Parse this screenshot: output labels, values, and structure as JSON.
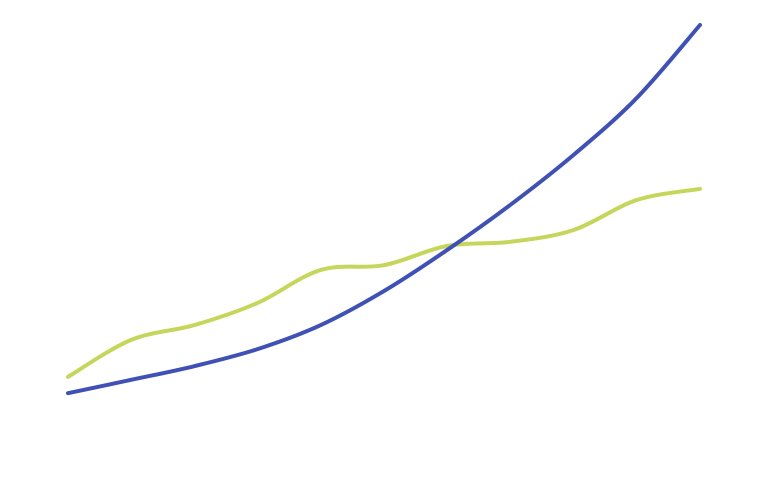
{
  "chart_data": {
    "type": "line",
    "x": [
      0,
      10,
      20,
      30,
      40,
      50,
      60,
      70,
      80,
      90,
      100
    ],
    "xlim": [
      0,
      100
    ],
    "ylim": [
      0,
      100
    ],
    "series": [
      {
        "color": "#3f51b5",
        "values": [
          0.5,
          4.1,
          7.8,
          12.4,
          18.9,
          28.1,
          39.2,
          51.4,
          64.9,
          80.3,
          100
        ]
      },
      {
        "color": "#c6d65b",
        "values": [
          4.9,
          14.9,
          18.9,
          24.9,
          33.8,
          35.1,
          40.3,
          41.4,
          44.6,
          52.7,
          55.7
        ]
      }
    ]
  }
}
